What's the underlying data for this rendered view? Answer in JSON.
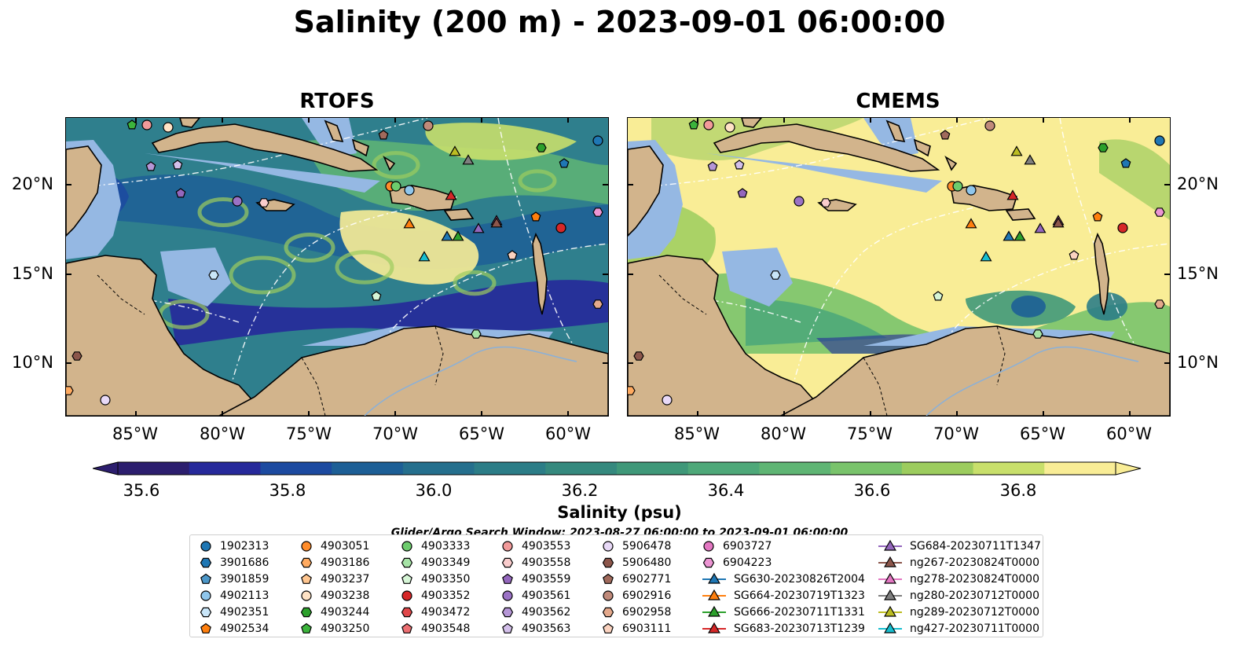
{
  "title": "Salinity (200 m) - 2023-09-01 06:00:00",
  "panels": [
    {
      "title": "RTOFS"
    },
    {
      "title": "CMEMS"
    }
  ],
  "lat_labels": [
    "20°N",
    "15°N",
    "10°N"
  ],
  "lon_labels": [
    "85°W",
    "80°W",
    "75°W",
    "70°W",
    "65°W",
    "60°W"
  ],
  "colorbar": {
    "title": "Salinity (psu)",
    "ticks": [
      "35.6",
      "35.8",
      "36.0",
      "36.2",
      "36.4",
      "36.6",
      "36.8"
    ],
    "min": 35.6,
    "max": 36.9,
    "step": 0.1,
    "colors": [
      "#2c1e6e",
      "#26299a",
      "#1c4aa0",
      "#1d5f96",
      "#256f8d",
      "#2c7d87",
      "#35897e",
      "#3f9879",
      "#4ea879",
      "#5fb574",
      "#79c36b",
      "#9ccc5e",
      "#c8df6b",
      "#f9ed96"
    ]
  },
  "search_window": "Glider/Argo Search Window: 2023-08-27 06:00:00 to 2023-09-01 06:00:00",
  "legend": [
    {
      "label": "1902313",
      "marker": "circle",
      "color": "#1f77b4"
    },
    {
      "label": "3901686",
      "marker": "hexagon",
      "color": "#1f77b4"
    },
    {
      "label": "3901859",
      "marker": "pentagon",
      "color": "#4c97c8"
    },
    {
      "label": "4902113",
      "marker": "circle",
      "color": "#8fc6ec"
    },
    {
      "label": "4902351",
      "marker": "hexagon",
      "color": "#c9e6f9"
    },
    {
      "label": "4902534",
      "marker": "pentagon",
      "color": "#ff7f0e"
    },
    {
      "label": "4903051",
      "marker": "circle",
      "color": "#ff8c2a"
    },
    {
      "label": "4903186",
      "marker": "hexagon",
      "color": "#ffaa60"
    },
    {
      "label": "4903237",
      "marker": "pentagon",
      "color": "#ffc690"
    },
    {
      "label": "4903238",
      "marker": "circle",
      "color": "#ffe3c6"
    },
    {
      "label": "4903244",
      "marker": "hexagon",
      "color": "#2ca02c"
    },
    {
      "label": "4903250",
      "marker": "pentagon",
      "color": "#3cb43c"
    },
    {
      "label": "4903333",
      "marker": "circle",
      "color": "#6dcc6d"
    },
    {
      "label": "4903349",
      "marker": "hexagon",
      "color": "#a6e3a6"
    },
    {
      "label": "4903350",
      "marker": "pentagon",
      "color": "#d6f5d6"
    },
    {
      "label": "4903352",
      "marker": "circle",
      "color": "#d62728"
    },
    {
      "label": "4903472",
      "marker": "hexagon",
      "color": "#e0484a"
    },
    {
      "label": "4903548",
      "marker": "pentagon",
      "color": "#ec6f72"
    },
    {
      "label": "4903553",
      "marker": "circle",
      "color": "#f29a9a"
    },
    {
      "label": "4903558",
      "marker": "hexagon",
      "color": "#f9cccc"
    },
    {
      "label": "4903559",
      "marker": "pentagon",
      "color": "#9467bd"
    },
    {
      "label": "4903561",
      "marker": "circle",
      "color": "#9b72c5"
    },
    {
      "label": "4903562",
      "marker": "hexagon",
      "color": "#b596d6"
    },
    {
      "label": "4903563",
      "marker": "pentagon",
      "color": "#d3bfea"
    },
    {
      "label": "5906478",
      "marker": "circle",
      "color": "#e8d9f7"
    },
    {
      "label": "5906480",
      "marker": "hexagon",
      "color": "#8c564b"
    },
    {
      "label": "6902771",
      "marker": "pentagon",
      "color": "#a06a5c"
    },
    {
      "label": "6902916",
      "marker": "circle",
      "color": "#c08a7a"
    },
    {
      "label": "6902958",
      "marker": "hexagon",
      "color": "#e4a98c"
    },
    {
      "label": "6903111",
      "marker": "pentagon",
      "color": "#fbd3c0"
    },
    {
      "label": "6903727",
      "marker": "circle",
      "color": "#e377c2"
    },
    {
      "label": "6904223",
      "marker": "hexagon",
      "color": "#ec95d3"
    },
    {
      "label": "SG630-20230826T2004",
      "marker": "triangle-line",
      "color": "#1f77b4"
    },
    {
      "label": "SG664-20230719T1323",
      "marker": "triangle-line",
      "color": "#ff7f0e"
    },
    {
      "label": "SG666-20230711T1331",
      "marker": "triangle-line",
      "color": "#2ca02c"
    },
    {
      "label": "SG683-20230713T1239",
      "marker": "triangle-line",
      "color": "#d62728"
    },
    {
      "label": "SG684-20230711T1347",
      "marker": "triangle-line",
      "color": "#9467bd"
    },
    {
      "label": "ng267-20230824T0000",
      "marker": "triangle-line",
      "color": "#8c564b"
    },
    {
      "label": "ng278-20230824T0000",
      "marker": "triangle-line",
      "color": "#e377c2"
    },
    {
      "label": "ng280-20230712T0000",
      "marker": "triangle-line",
      "color": "#7f7f7f"
    },
    {
      "label": "ng289-20230712T0000",
      "marker": "triangle-line",
      "color": "#bcbd22"
    },
    {
      "label": "ng427-20230711T0000",
      "marker": "triangle-line",
      "color": "#17becf"
    }
  ]
}
